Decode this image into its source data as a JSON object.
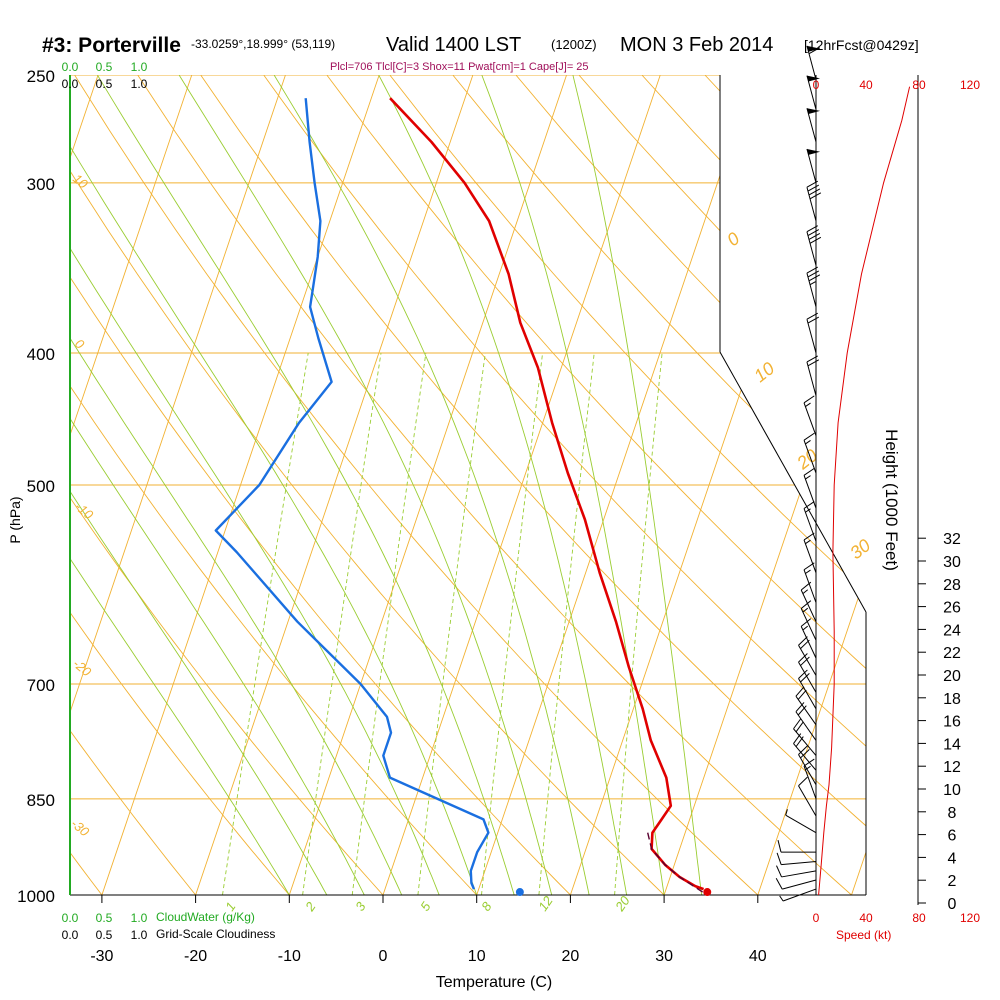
{
  "header": {
    "station": "#3: Porterville",
    "coords": "-33.0259°,18.999° (53,119)",
    "valid": "Valid 1400 LST",
    "utc": "(1200Z)",
    "date": "MON 3 Feb 2014",
    "forecast": "[12hrFcst@0429z]",
    "indices": "Plcl=706 Tlcl[C]=3 Shox=11 Pwat[cm]=1 Cape[J]= 25"
  },
  "colors": {
    "temperature": "#e00000",
    "dewpoint": "#1a6fe0",
    "isotherm": "#f2b233",
    "dry_adiabat": "#f2b233",
    "moist_adiabat": "#9acd32",
    "mixing_ratio": "#9acd32",
    "cloud": "#22aa22",
    "speed": "#e00000",
    "index_text": "#a0105a"
  },
  "chart_data": {
    "type": "line",
    "xlabel": "Temperature (C)",
    "ylabel": "P (hPa)",
    "right_label": "Height (1000 Feet)",
    "x_ticks": [
      "-30",
      "-20",
      "-10",
      "0",
      "10",
      "20",
      "30",
      "40"
    ],
    "pressure_ticks": [
      "250",
      "300",
      "400",
      "500",
      "700",
      "850",
      "1000"
    ],
    "height_ticks": [
      "0",
      "2",
      "4",
      "6",
      "8",
      "10",
      "12",
      "14",
      "16",
      "18",
      "20",
      "22",
      "24",
      "26",
      "28",
      "30",
      "32"
    ],
    "temperature_profile": [
      [
        34,
        990
      ],
      [
        33,
        985
      ],
      [
        31,
        970
      ],
      [
        29,
        950
      ],
      [
        27,
        925
      ],
      [
        26.5,
        900
      ],
      [
        27,
        880
      ],
      [
        27.5,
        860
      ],
      [
        26,
        820
      ],
      [
        23,
        770
      ],
      [
        21,
        730
      ],
      [
        18,
        680
      ],
      [
        15,
        630
      ],
      [
        11.5,
        580
      ],
      [
        8,
        530
      ],
      [
        4.5,
        490
      ],
      [
        1,
        450
      ],
      [
        -2.5,
        410
      ],
      [
        -6,
        380
      ],
      [
        -9,
        350
      ],
      [
        -13,
        320
      ],
      [
        -17,
        300
      ],
      [
        -22,
        280
      ],
      [
        -28,
        260
      ]
    ],
    "dewpoint_profile": [
      [
        9.5,
        990
      ],
      [
        9,
        980
      ],
      [
        8.5,
        960
      ],
      [
        8.5,
        930
      ],
      [
        9,
        900
      ],
      [
        8,
        880
      ],
      [
        -3.5,
        820
      ],
      [
        -5,
        790
      ],
      [
        -5,
        760
      ],
      [
        -6,
        740
      ],
      [
        -10,
        700
      ],
      [
        -19,
        630
      ],
      [
        -28,
        560
      ],
      [
        -31,
        540
      ],
      [
        -28,
        500
      ],
      [
        -26,
        450
      ],
      [
        -24,
        420
      ],
      [
        -27,
        390
      ],
      [
        -29,
        370
      ],
      [
        -30,
        340
      ],
      [
        -31,
        320
      ],
      [
        -33,
        300
      ],
      [
        -35,
        280
      ],
      [
        -37,
        260
      ]
    ],
    "parcel_profile": [
      [
        34,
        995
      ],
      [
        31,
        970
      ],
      [
        29,
        950
      ],
      [
        27,
        925
      ],
      [
        26,
        900
      ]
    ],
    "surface_points": [
      {
        "label": "T",
        "t": 34.5,
        "p": 995
      },
      {
        "label": "Td",
        "t": 14.5,
        "p": 995
      }
    ],
    "isotherm_labels": [
      "0",
      "10",
      "20",
      "30"
    ],
    "dry_adiabat_labels": [
      "10",
      "0",
      "-10",
      "-20",
      "-30"
    ],
    "mixing_ratio_labels": [
      "1",
      "2",
      "3",
      "5",
      "8",
      "12",
      "20"
    ],
    "wind_profile": [
      {
        "p": 990,
        "dir": 250,
        "spd": 8
      },
      {
        "p": 975,
        "dir": 255,
        "spd": 10
      },
      {
        "p": 960,
        "dir": 260,
        "spd": 12
      },
      {
        "p": 945,
        "dir": 265,
        "spd": 12
      },
      {
        "p": 930,
        "dir": 270,
        "spd": 10
      },
      {
        "p": 900,
        "dir": 300,
        "spd": 8
      },
      {
        "p": 875,
        "dir": 330,
        "spd": 12
      },
      {
        "p": 850,
        "dir": 340,
        "spd": 15
      },
      {
        "p": 830,
        "dir": 330,
        "spd": 20
      },
      {
        "p": 810,
        "dir": 320,
        "spd": 20
      },
      {
        "p": 790,
        "dir": 320,
        "spd": 22
      },
      {
        "p": 770,
        "dir": 325,
        "spd": 22
      },
      {
        "p": 750,
        "dir": 325,
        "spd": 22
      },
      {
        "p": 730,
        "dir": 330,
        "spd": 22
      },
      {
        "p": 710,
        "dir": 330,
        "spd": 20
      },
      {
        "p": 690,
        "dir": 330,
        "spd": 20
      },
      {
        "p": 670,
        "dir": 335,
        "spd": 18
      },
      {
        "p": 650,
        "dir": 335,
        "spd": 18
      },
      {
        "p": 630,
        "dir": 335,
        "spd": 18
      },
      {
        "p": 610,
        "dir": 340,
        "spd": 15
      },
      {
        "p": 580,
        "dir": 340,
        "spd": 15
      },
      {
        "p": 550,
        "dir": 340,
        "spd": 15
      },
      {
        "p": 520,
        "dir": 340,
        "spd": 15
      },
      {
        "p": 490,
        "dir": 340,
        "spd": 15
      },
      {
        "p": 460,
        "dir": 340,
        "spd": 15
      },
      {
        "p": 430,
        "dir": 345,
        "spd": 20
      },
      {
        "p": 400,
        "dir": 345,
        "spd": 20
      },
      {
        "p": 370,
        "dir": 345,
        "spd": 35
      },
      {
        "p": 345,
        "dir": 345,
        "spd": 40
      },
      {
        "p": 320,
        "dir": 345,
        "spd": 40
      },
      {
        "p": 300,
        "dir": 345,
        "spd": 50
      },
      {
        "p": 280,
        "dir": 345,
        "spd": 50
      },
      {
        "p": 265,
        "dir": 345,
        "spd": 50
      },
      {
        "p": 252,
        "dir": 345,
        "spd": 60
      }
    ],
    "speed_profile": [
      [
        2,
        1000
      ],
      [
        4,
        950
      ],
      [
        6,
        900
      ],
      [
        8,
        860
      ],
      [
        10,
        830
      ],
      [
        12,
        780
      ],
      [
        14,
        700
      ],
      [
        14,
        640
      ],
      [
        13,
        560
      ],
      [
        14,
        500
      ],
      [
        17,
        450
      ],
      [
        24,
        400
      ],
      [
        35,
        350
      ],
      [
        52,
        300
      ],
      [
        66,
        270
      ],
      [
        72,
        255
      ]
    ],
    "speed_axis": {
      "label": "Speed (kt)",
      "ticks": [
        "0",
        "40",
        "80",
        "120"
      ]
    },
    "cloud_water": {
      "label": "CloudWater (g/Kg)",
      "ticks": [
        "0.0",
        "0.5",
        "1.0"
      ]
    },
    "cloudiness": {
      "label": "Grid-Scale Cloudiness",
      "ticks": [
        "0.0",
        "0.5",
        "1.0"
      ]
    }
  }
}
